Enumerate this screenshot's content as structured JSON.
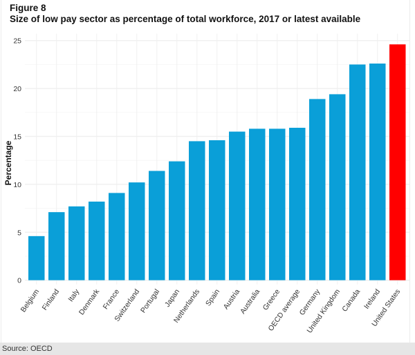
{
  "figure": {
    "label": "Figure 8",
    "title": "Size of low pay sector as percentage of total workforce, 2017 or latest available"
  },
  "footer": {
    "source": "Source: OECD"
  },
  "colors": {
    "bar": "#0a9fd8",
    "highlight": "#ff0000",
    "grid": "#f0f0f0"
  },
  "chart_data": {
    "type": "bar",
    "title": "Size of low pay sector as percentage of total workforce, 2017 or latest available",
    "xlabel": "",
    "ylabel": "Percentage",
    "ylim": [
      0,
      25
    ],
    "yticks": [
      0,
      5,
      10,
      15,
      20,
      25
    ],
    "grid": true,
    "legend": "none",
    "categories": [
      "Belgium",
      "Finland",
      "Italy",
      "Denmark",
      "France",
      "Switzerland",
      "Portugal",
      "Japan",
      "Netherlands",
      "Spain",
      "Austria",
      "Australia",
      "Greece",
      "OECD average",
      "Germany",
      "United Kingdom",
      "Canada",
      "Ireland",
      "United States"
    ],
    "values": [
      4.6,
      7.1,
      7.7,
      8.2,
      9.1,
      10.2,
      11.4,
      12.4,
      14.5,
      14.6,
      15.5,
      15.8,
      15.8,
      15.9,
      18.9,
      19.4,
      22.5,
      22.6,
      24.6
    ],
    "highlight": [
      "United States"
    ]
  }
}
